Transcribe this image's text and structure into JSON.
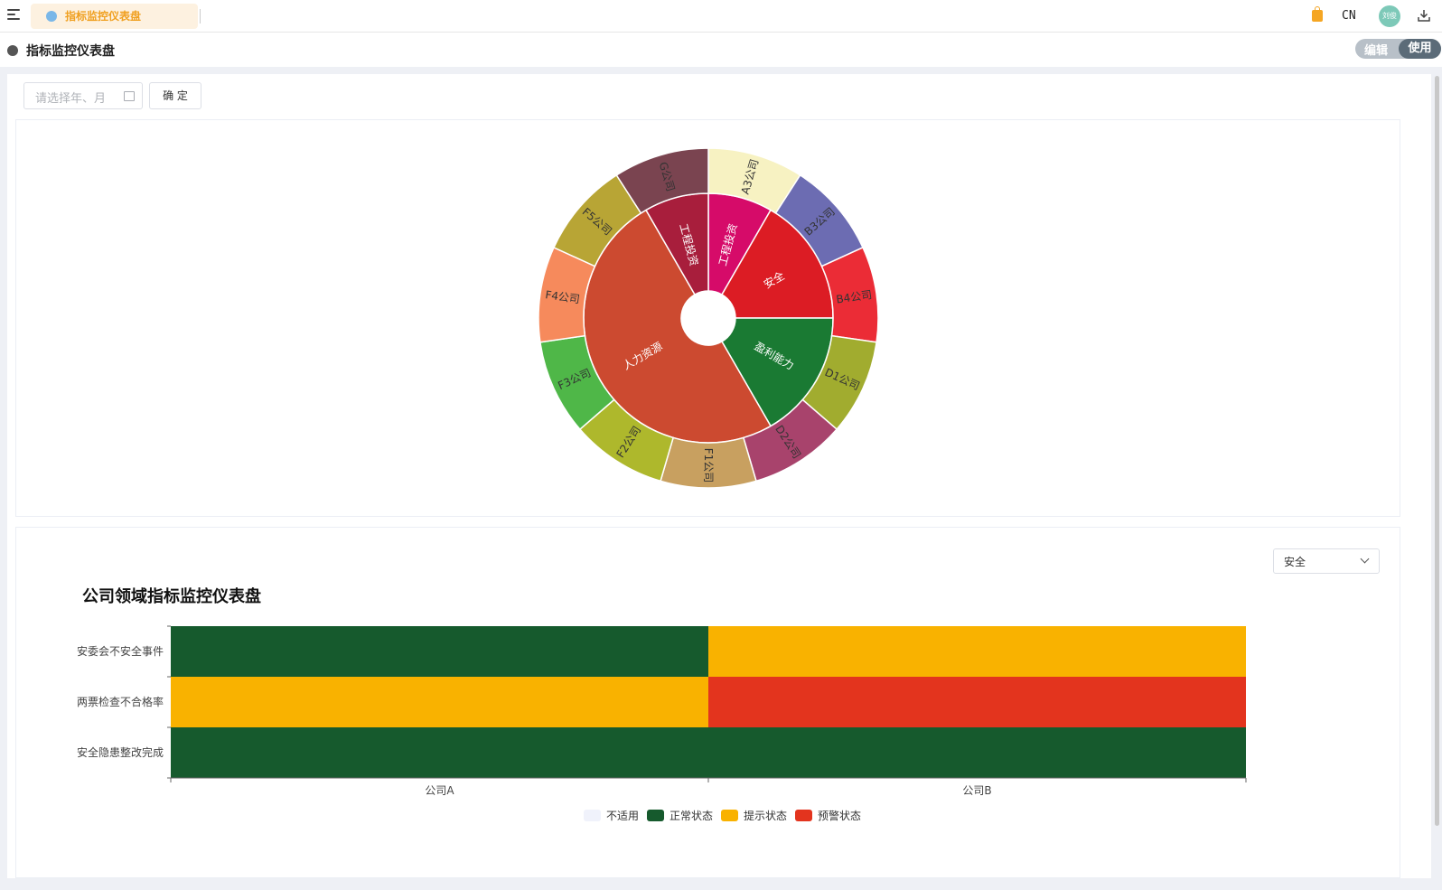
{
  "header": {
    "active_tab": "指标监控仪表盘",
    "language": "CN",
    "user_initials": "刘俊"
  },
  "page": {
    "title": "指标监控仪表盘",
    "mode_edit": "编辑",
    "mode_use": "使用"
  },
  "filter": {
    "date_placeholder": "请选择年、月",
    "confirm_label": "确 定"
  },
  "sunburst": {
    "inner": [
      {
        "name": "工程投资",
        "value": 1,
        "color": "#d60b69"
      },
      {
        "name": "安全",
        "value": 2,
        "color": "#dc1c24"
      },
      {
        "name": "盈利能力",
        "value": 2,
        "color": "#1a7a33"
      },
      {
        "name": "人力资源",
        "value": 6,
        "color": "#cc4a30"
      },
      {
        "name": "工程投资",
        "value": 1,
        "color": "#a81e3c"
      }
    ],
    "outer": [
      {
        "name": "A3公司",
        "value": 1,
        "color": "#f7f2c2"
      },
      {
        "name": "B3公司",
        "value": 1,
        "color": "#6c6cb2"
      },
      {
        "name": "B4公司",
        "value": 1,
        "color": "#eb2c36"
      },
      {
        "name": "D1公司",
        "value": 1,
        "color": "#a1ac2f"
      },
      {
        "name": "D2公司",
        "value": 1,
        "color": "#a8436c"
      },
      {
        "name": "F1公司",
        "value": 1,
        "color": "#c8a060"
      },
      {
        "name": "F2公司",
        "value": 1,
        "color": "#aeb82c"
      },
      {
        "name": "F3公司",
        "value": 1,
        "color": "#4fb748"
      },
      {
        "name": "F4公司",
        "value": 1,
        "color": "#f68a5c"
      },
      {
        "name": "F5公司",
        "value": 1,
        "color": "#b8a535"
      },
      {
        "name": "G公司",
        "value": 1,
        "color": "#7a4450"
      }
    ]
  },
  "domain_select": {
    "value": "安全"
  },
  "chart_data": {
    "type": "heatmap",
    "title": "公司领域指标监控仪表盘",
    "x_categories": [
      "公司A",
      "公司B"
    ],
    "y_categories": [
      "安委会不安全事件",
      "两票检查不合格率",
      "安全隐患整改完成"
    ],
    "cells": [
      [
        "正常状态",
        "提示状态"
      ],
      [
        "提示状态",
        "预警状态"
      ],
      [
        "正常状态",
        "正常状态"
      ]
    ],
    "legend": [
      {
        "name": "不适用",
        "color": "#f0f2fb"
      },
      {
        "name": "正常状态",
        "color": "#165a2d"
      },
      {
        "name": "提示状态",
        "color": "#f9b200"
      },
      {
        "name": "预警状态",
        "color": "#e3341e"
      }
    ]
  }
}
